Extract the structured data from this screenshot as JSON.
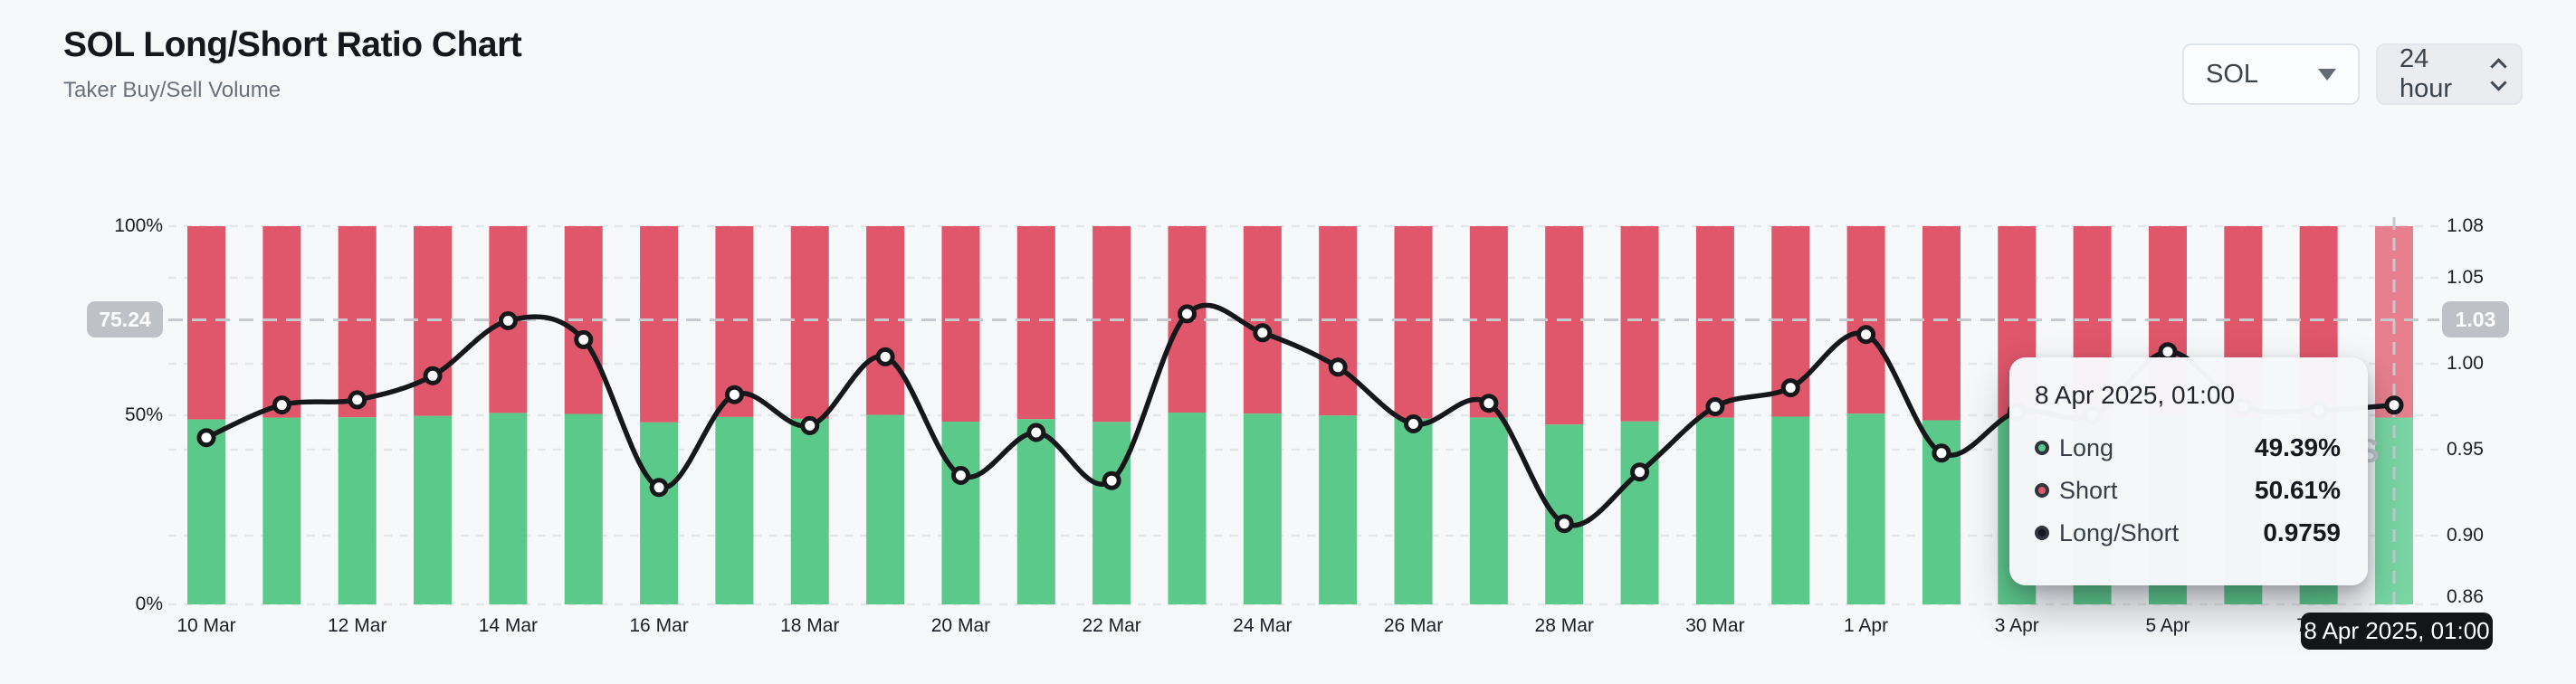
{
  "header": {
    "title": "SOL Long/Short Ratio Chart",
    "subtitle": "Taker Buy/Sell Volume"
  },
  "controls": {
    "symbol_select": {
      "value": "SOL"
    },
    "interval_select": {
      "value": "24 hour"
    }
  },
  "colors": {
    "long": "#5bc98a",
    "short": "#e0566a",
    "long_highlight": "#79d7a4",
    "short_highlight": "#e87f8e",
    "line": "#15171b",
    "grid": "#e4e6e9",
    "crosshair": "#c6cacf",
    "badge_bg": "#bec1c6",
    "page_bg": "#f7f8fa"
  },
  "axes": {
    "left": {
      "ticks": [
        {
          "label": "100%",
          "value": 100
        },
        {
          "label": "50%",
          "value": 50
        },
        {
          "label": "0%",
          "value": 0
        }
      ],
      "crosshair_badge": "75.24"
    },
    "right": {
      "ticks": [
        {
          "label": "1.08",
          "value": 1.08
        },
        {
          "label": "1.05",
          "value": 1.05
        },
        {
          "label": "1.00",
          "value": 1.0
        },
        {
          "label": "0.95",
          "value": 0.95
        },
        {
          "label": "0.90",
          "value": 0.9
        },
        {
          "label": "0.86",
          "value": 0.86
        }
      ],
      "crosshair_badge": "1.03"
    },
    "x": {
      "tick_labels": [
        "10 Mar",
        "12 Mar",
        "14 Mar",
        "16 Mar",
        "18 Mar",
        "20 Mar",
        "22 Mar",
        "24 Mar",
        "26 Mar",
        "28 Mar",
        "30 Mar",
        "1 Apr",
        "3 Apr",
        "5 Apr",
        "7 Apr"
      ]
    }
  },
  "chart_data": {
    "type": "bar+line",
    "title": "SOL Long/Short Ratio Chart",
    "x": [
      "10 Mar",
      "11 Mar",
      "12 Mar",
      "13 Mar",
      "14 Mar",
      "15 Mar",
      "16 Mar",
      "17 Mar",
      "18 Mar",
      "19 Mar",
      "20 Mar",
      "21 Mar",
      "22 Mar",
      "23 Mar",
      "24 Mar",
      "25 Mar",
      "26 Mar",
      "27 Mar",
      "28 Mar",
      "29 Mar",
      "30 Mar",
      "31 Mar",
      "1 Apr",
      "2 Apr",
      "3 Apr",
      "4 Apr",
      "5 Apr",
      "6 Apr",
      "7 Apr",
      "8 Apr"
    ],
    "series": [
      {
        "name": "Long",
        "type": "bar",
        "unit": "%",
        "values": [
          48.9,
          49.39,
          49.47,
          49.82,
          50.62,
          50.35,
          48.13,
          49.55,
          49.08,
          50.1,
          48.32,
          48.98,
          48.24,
          50.71,
          50.45,
          49.95,
          49.11,
          49.42,
          47.56,
          48.37,
          49.37,
          49.65,
          50.42,
          48.67,
          49.29,
          49.24,
          50.17,
          49.37,
          49.32,
          49.39
        ]
      },
      {
        "name": "Short",
        "type": "bar",
        "unit": "%",
        "values": [
          51.1,
          50.61,
          50.53,
          50.18,
          49.38,
          49.65,
          51.87,
          50.45,
          50.92,
          49.9,
          51.68,
          51.02,
          51.76,
          49.29,
          49.55,
          50.05,
          50.89,
          50.58,
          52.44,
          51.63,
          50.63,
          50.35,
          49.58,
          51.33,
          50.71,
          50.76,
          49.83,
          50.63,
          50.68,
          50.61
        ]
      },
      {
        "name": "Long/Short",
        "type": "line",
        "values": [
          0.957,
          0.976,
          0.979,
          0.993,
          1.025,
          1.014,
          0.928,
          0.982,
          0.964,
          1.004,
          0.935,
          0.96,
          0.932,
          1.029,
          1.018,
          0.998,
          0.965,
          0.977,
          0.907,
          0.937,
          0.975,
          0.986,
          1.017,
          0.948,
          0.972,
          0.97,
          1.007,
          0.975,
          0.973,
          0.9759
        ]
      }
    ],
    "ylim_left_pct": [
      0,
      100
    ],
    "ylim_right_ratio": [
      0.86,
      1.08
    ],
    "grid": "horizontal-dashed",
    "highlighted_index": 29,
    "hovered_point": {
      "x": "8 Apr",
      "long": "49.39%",
      "short": "50.61%",
      "ratio": "0.9759"
    }
  },
  "crosshair": {
    "left_value": "75.24",
    "right_value": "1.03",
    "x_label": "8 Apr 2025, 01:00"
  },
  "tooltip": {
    "title": "8 Apr 2025, 01:00",
    "rows": [
      {
        "label": "Long",
        "value": "49.39%",
        "color": "#5bc98a"
      },
      {
        "label": "Short",
        "value": "50.61%",
        "color": "#e0566a"
      },
      {
        "label": "Long/Short",
        "value": "0.9759",
        "color": "#15171b"
      }
    ]
  },
  "watermark": "S"
}
